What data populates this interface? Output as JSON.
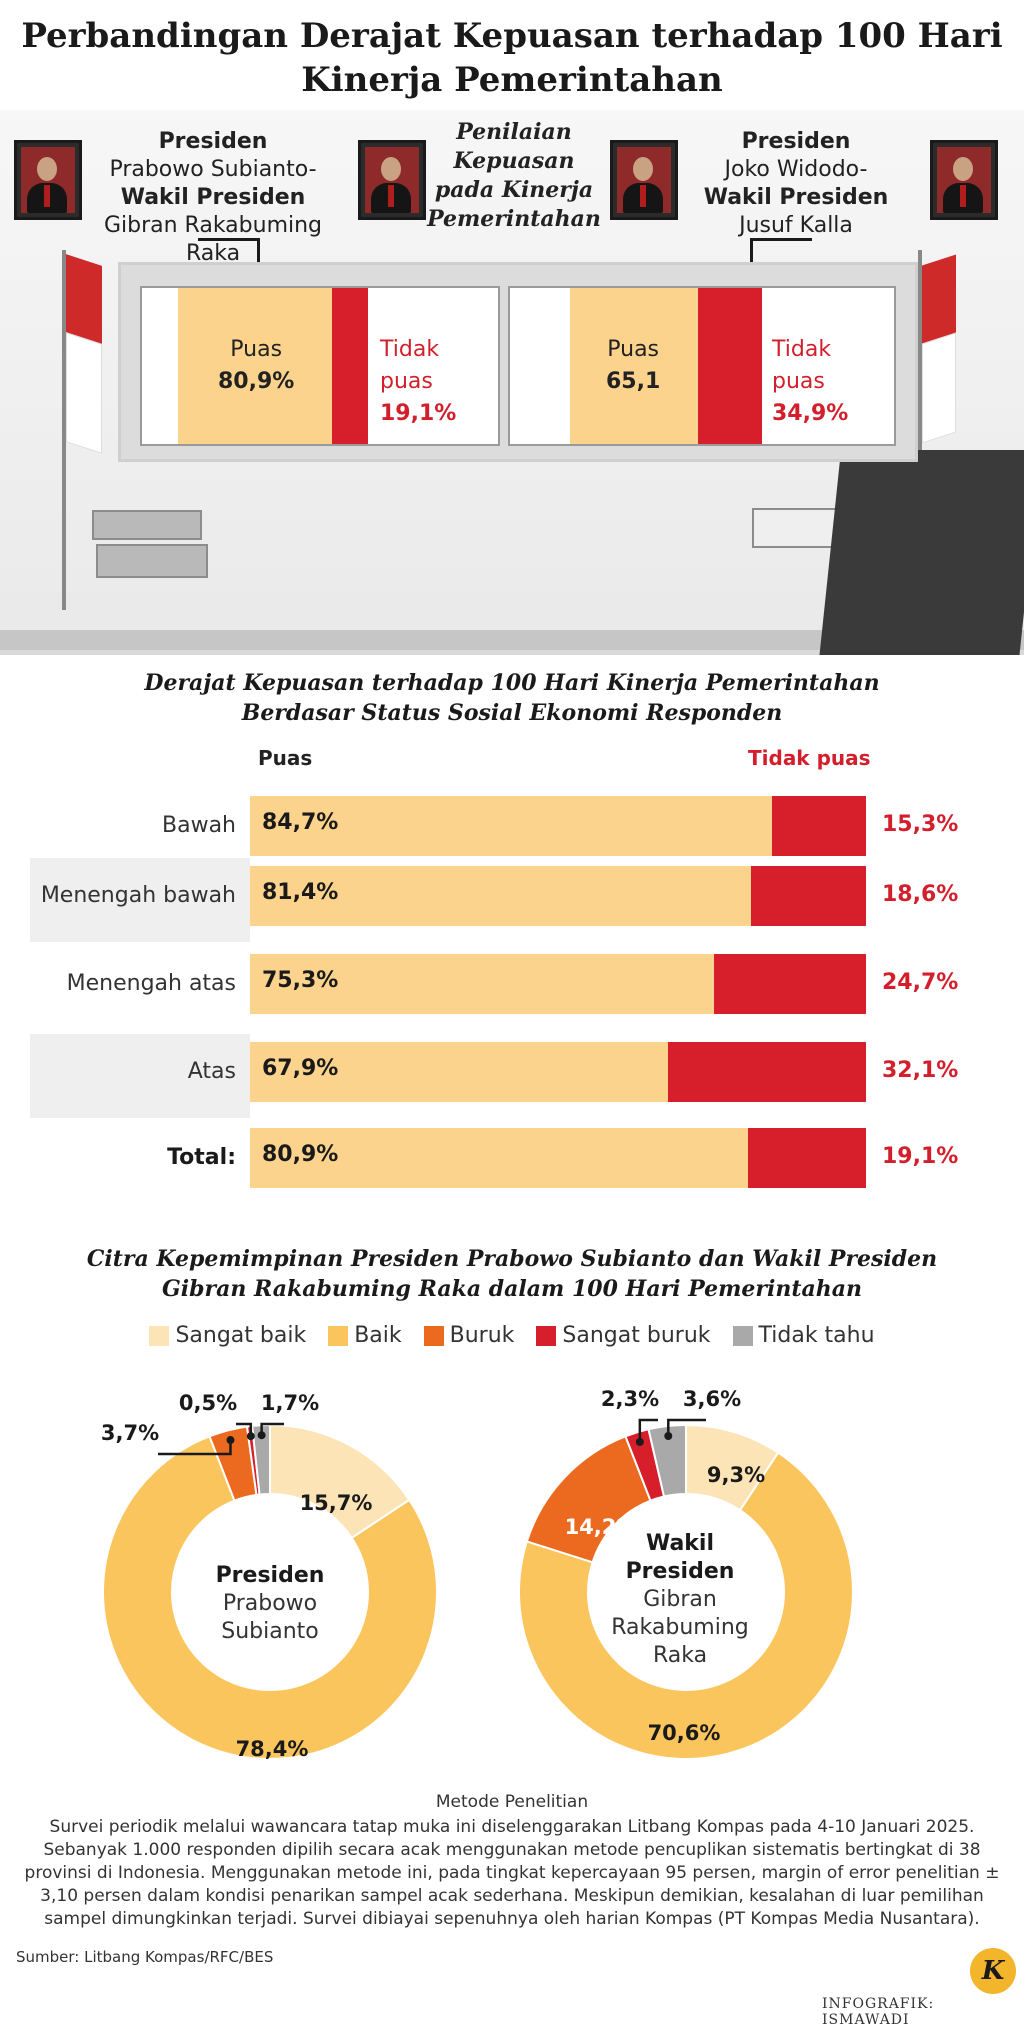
{
  "title": "Perbandingan Derajat Kepuasan terhadap 100 Hari Kinerja Pemerintahan",
  "top": {
    "left_group": {
      "line1": "Presiden",
      "line2": "Prabowo Subianto-",
      "line3": "Wakil Presiden",
      "line4": "Gibran Rakabuming Raka"
    },
    "center_label": "Penilaian Kepuasan pada Kinerja Pemerintahan",
    "right_group": {
      "line1": "Presiden",
      "line2": "Joko Widodo-",
      "line3": "Wakil Presiden",
      "line4": "Jusuf Kalla"
    },
    "left_board": {
      "puas_label": "Puas",
      "puas_value": "80,9%",
      "tidak_label_1": "Tidak",
      "tidak_label_2": "puas",
      "tidak_value": "19,1%"
    },
    "right_board": {
      "puas_label": "Puas",
      "puas_value": "65,1",
      "tidak_label_1": "Tidak",
      "tidak_label_2": "puas",
      "tidak_value": "34,9%"
    }
  },
  "section2": {
    "title_line1": "Derajat Kepuasan terhadap 100 Hari Kinerja Pemerintahan",
    "title_line2": "Berdasar Status Sosial Ekonomi Responden",
    "header_puas": "Puas",
    "header_tidak": "Tidak puas"
  },
  "section3": {
    "title_line1": "Citra Kepemimpinan Presiden Prabowo Subianto dan Wakil Presiden",
    "title_line2": "Gibran Rakabuming Raka dalam 100 Hari Pemerintahan",
    "legend": [
      "Sangat baik",
      "Baik",
      "Buruk",
      "Sangat buruk",
      "Tidak tahu"
    ],
    "president_center": {
      "line1": "Presiden",
      "line2": "Prabowo",
      "line3": "Subianto"
    },
    "vp_center": {
      "line1": "Wakil",
      "line2": "Presiden",
      "line3": "Gibran",
      "line4": "Rakabuming",
      "line5": "Raka"
    }
  },
  "colors": {
    "sangat_baik": "#fde4b6",
    "baik": "#fbc55d",
    "buruk": "#ec6a1f",
    "sangat_buruk": "#d71f2c",
    "tidak_tahu": "#a9a9a9",
    "puas": "#fbd38c",
    "tidak_puas": "#d71f2c"
  },
  "method": {
    "title": "Metode Penelitian",
    "text": "Survei periodik melalui wawancara tatap muka ini diselenggarakan Litbang Kompas pada 4-10 Januari 2025. Sebanyak 1.000 responden dipilih secara acak menggunakan metode pencuplikan sistematis bertingkat di 38 provinsi di Indonesia. Menggunakan metode ini, pada tingkat kepercayaan 95 persen, margin of error penelitian ± 3,10 persen dalam kondisi penarikan sampel acak sederhana. Meskipun demikian, kesalahan di luar pemilihan sampel dimungkinkan terjadi. Survei dibiayai sepenuhnya oleh harian Kompas (PT Kompas Media Nusantara)."
  },
  "source": "Sumber: Litbang Kompas/RFC/BES",
  "credit": "INFOGRAFIK: ISMAWADI",
  "logo_letter": "K",
  "chart_data": [
    {
      "type": "bar",
      "orientation": "horizontal",
      "stacked": true,
      "title": "Derajat Kepuasan terhadap 100 Hari Kinerja Pemerintahan Berdasar Status Sosial Ekonomi Responden",
      "categories": [
        "Bawah",
        "Menengah bawah",
        "Menengah atas",
        "Atas",
        "Total:"
      ],
      "series": [
        {
          "name": "Puas",
          "values": [
            84.7,
            81.4,
            75.3,
            67.9,
            80.9
          ],
          "labels": [
            "84,7%",
            "81,4%",
            "75,3%",
            "67,9%",
            "80,9%"
          ]
        },
        {
          "name": "Tidak puas",
          "values": [
            15.3,
            18.6,
            24.7,
            32.1,
            19.1
          ],
          "labels": [
            "15,3%",
            "18,6%",
            "24,7%",
            "32,1%",
            "19,1%"
          ]
        }
      ]
    },
    {
      "type": "pie",
      "donut": true,
      "center_label": "Presiden Prabowo Subianto",
      "categories": [
        "Sangat baik",
        "Baik",
        "Buruk",
        "Sangat buruk",
        "Tidak tahu"
      ],
      "values": [
        15.7,
        78.4,
        3.7,
        0.5,
        1.7
      ],
      "labels": [
        "15,7%",
        "78,4%",
        "3,7%",
        "0,5%",
        "1,7%"
      ]
    },
    {
      "type": "pie",
      "donut": true,
      "center_label": "Wakil Presiden Gibran Rakabuming Raka",
      "categories": [
        "Sangat baik",
        "Baik",
        "Buruk",
        "Sangat buruk",
        "Tidak tahu"
      ],
      "values": [
        9.3,
        70.6,
        14.2,
        2.3,
        3.6
      ],
      "labels": [
        "9,3%",
        "70,6%",
        "14,2%",
        "2,3%",
        "3,6%"
      ]
    }
  ]
}
